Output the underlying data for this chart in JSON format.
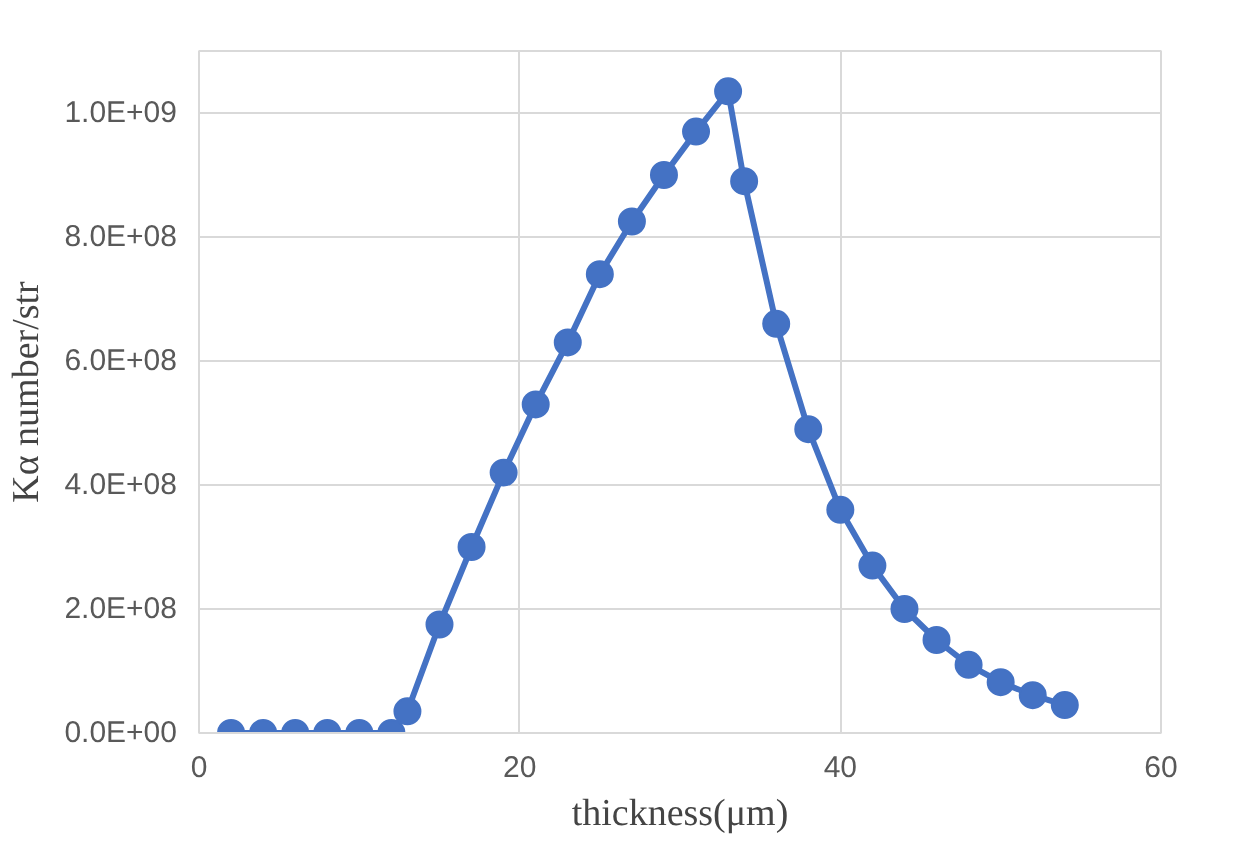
{
  "chart_data": {
    "type": "line",
    "xlabel": "thickness(μm)",
    "ylabel": "Kα number/str",
    "x": [
      2,
      4,
      6,
      8,
      10,
      12,
      13,
      15,
      17,
      19,
      21,
      23,
      25,
      27,
      29,
      31,
      33,
      34,
      36,
      38,
      40,
      42,
      44,
      46,
      48,
      50,
      52,
      54
    ],
    "series": [
      {
        "color": "#4472c4",
        "values": [
          0,
          0,
          0,
          0,
          0,
          0,
          35000000.0,
          175000000.0,
          300000000.0,
          420000000.0,
          530000000.0,
          630000000.0,
          740000000.0,
          825000000.0,
          900000000.0,
          970000000.0,
          1035000000.0,
          890000000.0,
          660000000.0,
          490000000.0,
          360000000.0,
          270000000.0,
          200000000.0,
          150000000.0,
          110000000.0,
          82000000.0,
          61000000.0,
          45000000.0
        ]
      }
    ],
    "xlim": [
      0,
      60
    ],
    "xticks": [
      0,
      20,
      40,
      60
    ],
    "ylim": [
      0,
      1100000000.0
    ],
    "yticks": [
      {
        "value": 0,
        "label": "0.0E+00"
      },
      {
        "value": 200000000.0,
        "label": "2.0E+08"
      },
      {
        "value": 400000000.0,
        "label": "4.0E+08"
      },
      {
        "value": 600000000.0,
        "label": "6.0E+08"
      },
      {
        "value": 800000000.0,
        "label": "8.0E+08"
      },
      {
        "value": 1000000000.0,
        "label": "1.0E+09"
      }
    ],
    "grid": true,
    "marker": "circle",
    "line_style": "solid"
  }
}
